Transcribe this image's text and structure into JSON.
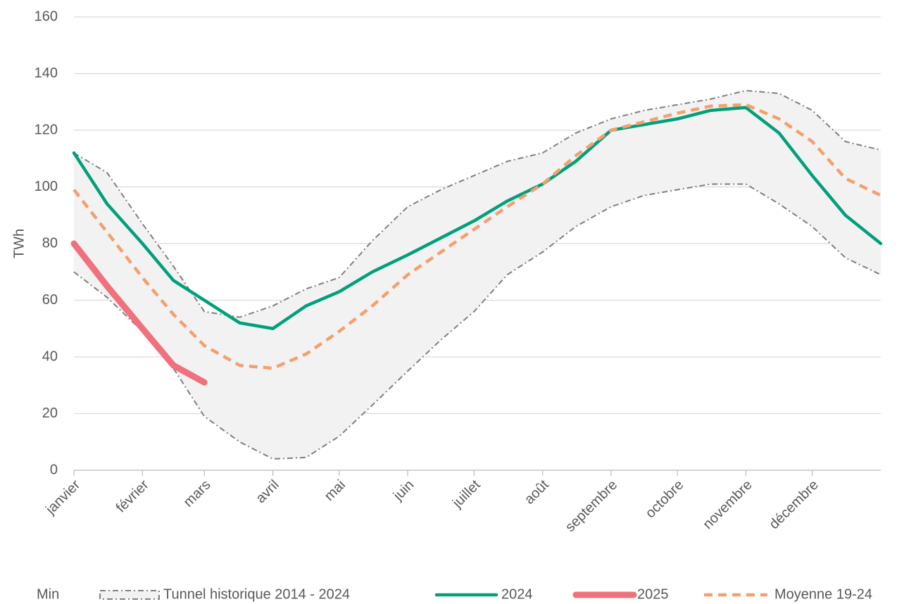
{
  "chart_data": {
    "type": "line",
    "y_label": "TWh",
    "xlim": [
      0,
      365
    ],
    "xticks": [
      {
        "value": 0,
        "label": "janvier"
      },
      {
        "value": 31,
        "label": "février"
      },
      {
        "value": 59,
        "label": "mars"
      },
      {
        "value": 90,
        "label": "avril"
      },
      {
        "value": 120,
        "label": "mai"
      },
      {
        "value": 151,
        "label": "juin"
      },
      {
        "value": 181,
        "label": "juillet"
      },
      {
        "value": 212,
        "label": "août"
      },
      {
        "value": 243,
        "label": "septembre"
      },
      {
        "value": 273,
        "label": "octobre"
      },
      {
        "value": 304,
        "label": "novembre"
      },
      {
        "value": 334,
        "label": "décembre"
      }
    ],
    "ylim": [
      0,
      160
    ],
    "yticks": [
      0,
      20,
      40,
      60,
      80,
      100,
      120,
      140,
      160
    ],
    "grid": true,
    "x": [
      0,
      15,
      31,
      45,
      59,
      75,
      90,
      105,
      120,
      135,
      151,
      166,
      181,
      196,
      212,
      227,
      243,
      258,
      273,
      288,
      304,
      319,
      334,
      349,
      365
    ],
    "series": [
      {
        "name": "Min",
        "color": "#ffffff",
        "values": [
          70,
          61,
          49,
          36,
          19,
          10,
          4,
          4.5,
          12,
          23,
          35,
          46,
          56,
          69,
          77,
          86,
          93,
          97,
          99,
          101,
          101,
          94,
          86,
          75,
          69
        ]
      },
      {
        "name": "Tunnel historique 2014 - 2024",
        "color": "#f2f2f2",
        "values": [
          112,
          105,
          87,
          72,
          56,
          54,
          58,
          64,
          68,
          81,
          93,
          99,
          104,
          109,
          112,
          119,
          124,
          127,
          129,
          131,
          134,
          133,
          127,
          116,
          113
        ]
      },
      {
        "name": "2024",
        "color": "#00a07a",
        "values": [
          112,
          94,
          80,
          67,
          60,
          52,
          50,
          58,
          63,
          70,
          76,
          82,
          88,
          95,
          101,
          109,
          120,
          122,
          124,
          127,
          128,
          119,
          104,
          90,
          80
        ]
      },
      {
        "name": "2025",
        "color": "#f0717d",
        "values": [
          80,
          65,
          50,
          37,
          31,
          null,
          null,
          null,
          null,
          null,
          null,
          null,
          null,
          null,
          null,
          null,
          null,
          null,
          null,
          null,
          null,
          null,
          null,
          null,
          null
        ]
      },
      {
        "name": "Moyenne 19-24",
        "color": "#f4a06e",
        "values": [
          99,
          84,
          68,
          55,
          44,
          37,
          36,
          41,
          49,
          58,
          69,
          77,
          85,
          93,
          101,
          111,
          120,
          123,
          126,
          128.5,
          129,
          124,
          116,
          103,
          97
        ]
      }
    ]
  }
}
